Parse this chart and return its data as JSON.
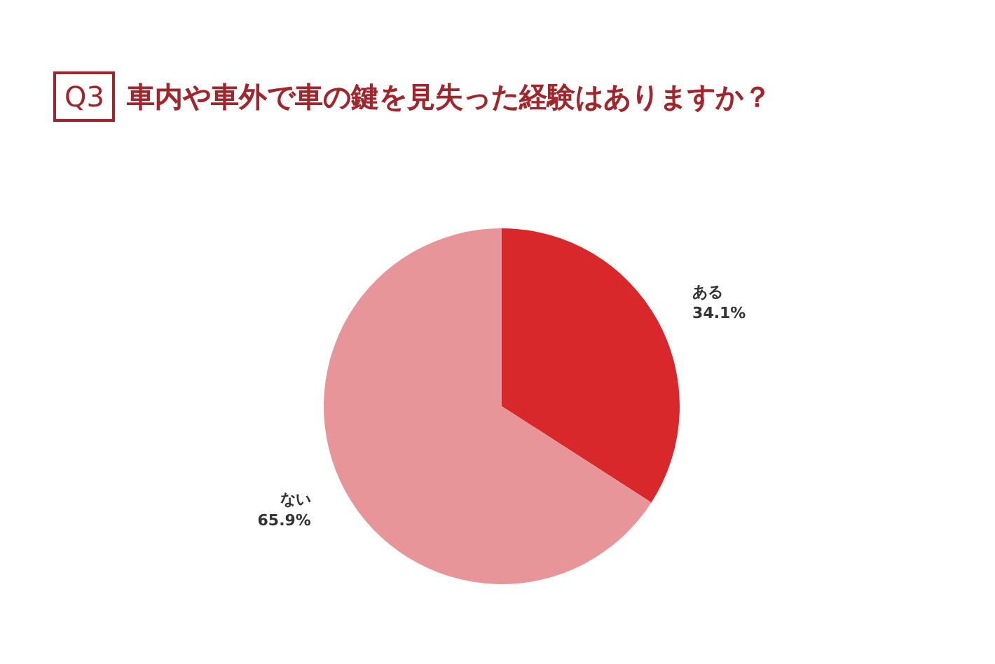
{
  "chart_data": {
    "type": "pie",
    "title": "Q3 車内や車外で車の鍵を見失った経験はありますか？",
    "categories": [
      "ある",
      "ない"
    ],
    "values": [
      34.1,
      65.9
    ],
    "value_labels": [
      "34.1%",
      "65.9%"
    ],
    "colors": [
      "#d9282c",
      "#e8959a"
    ],
    "legend": false
  }
}
